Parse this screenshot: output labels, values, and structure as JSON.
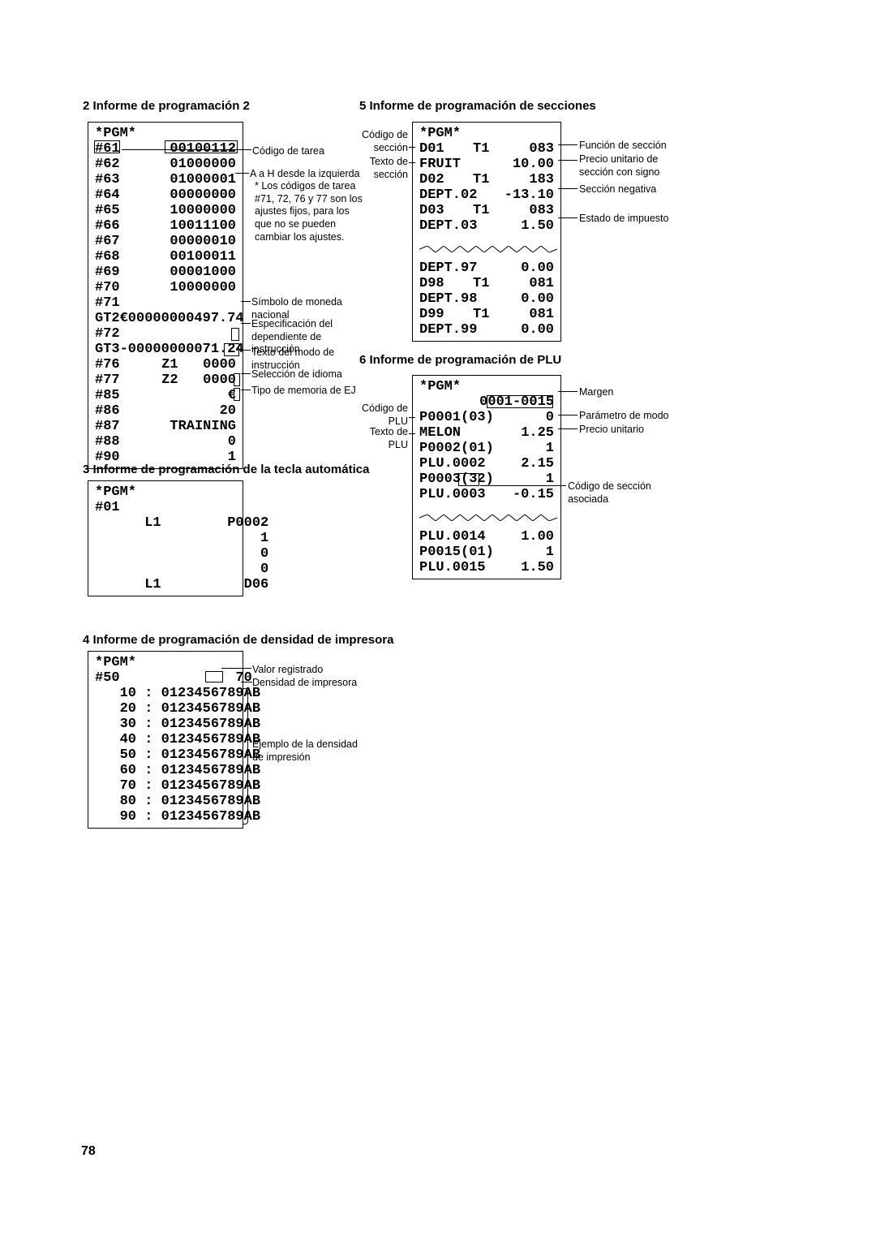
{
  "pageNumber": "78",
  "sections": {
    "s2": {
      "title": "2  Informe de programación 2",
      "header": "*PGM*",
      "rows1": [
        {
          "l": "#61",
          "r": "00100112"
        },
        {
          "l": "#62",
          "r": "01000000"
        },
        {
          "l": "#63",
          "r": "01000001"
        },
        {
          "l": "#64",
          "r": "00000000"
        },
        {
          "l": "#65",
          "r": "10000000"
        },
        {
          "l": "#66",
          "r": "10011100"
        },
        {
          "l": "#67",
          "r": "00000010"
        },
        {
          "l": "#68",
          "r": "00100011"
        },
        {
          "l": "#69",
          "r": "00001000"
        },
        {
          "l": "#70",
          "r": "10000000"
        },
        {
          "l": "#71",
          "r": ""
        },
        {
          "l": "GT2",
          "r": "€00000000497.74"
        },
        {
          "l": "#72",
          "r": ""
        },
        {
          "l": "GT3",
          "r": "-00000000071.24"
        },
        {
          "l": "#76",
          "r": "Z1   0000"
        },
        {
          "l": "#77",
          "r": "Z2   0000"
        },
        {
          "l": "#85",
          "r": "€"
        },
        {
          "l": "#86",
          "r": "20"
        },
        {
          "l": "#87",
          "r": "TRAINING"
        },
        {
          "l": "#88",
          "r": "0"
        },
        {
          "l": "#90",
          "r": "1"
        }
      ],
      "ann": {
        "codigoTarea": "Código de tarea",
        "aAh": "A a H desde la izquierda",
        "note": "* Los códigos de tarea #71, 72, 76 y 77 son los ajustes fijos, para los que no se pueden cambiar los ajustes.",
        "simbolo": "Símbolo de moneda nacional",
        "espec": "Especificación del dependiente de instrucción",
        "textoModo": "Texto del modo de instrucción",
        "seleccion": "Selección de idioma",
        "tipoEJ": "Tipo de memoria de EJ"
      }
    },
    "s3": {
      "title": "3  Informe de programación de la tecla automática",
      "lines": [
        "*PGM*",
        "#01",
        "      L1        P0002",
        "                    1",
        "                    0",
        "                    0",
        "      L1          D06"
      ]
    },
    "s4": {
      "title": "4  Informe de programación de densidad de impresora",
      "lines": [
        "*PGM*",
        "#50              70",
        "   10 : 0123456789AB",
        "   20 : 0123456789AB",
        "   30 : 0123456789AB",
        "   40 : 0123456789AB",
        "   50 : 0123456789AB",
        "   60 : 0123456789AB",
        "   70 : 0123456789AB",
        "   80 : 0123456789AB",
        "   90 : 0123456789AB"
      ],
      "ann": {
        "valor": "Valor registrado",
        "densidad": "Densidad de impresora",
        "ejemplo": "Ejemplo de la densidad de impresión"
      }
    },
    "s5": {
      "title": "5  Informe de programación de secciones",
      "header": "*PGM*",
      "rows1": [
        {
          "c1": "D01",
          "c2": "T1",
          "c3": "083"
        },
        {
          "c1": "FRUIT",
          "c2": "",
          "c3": "10.00"
        },
        {
          "c1": "D02",
          "c2": "T1",
          "c3": "183"
        },
        {
          "c1": "DEPT.02",
          "c2": "",
          "c3": "-13.10"
        },
        {
          "c1": "D03",
          "c2": "T1",
          "c3": "083"
        },
        {
          "c1": "DEPT.03",
          "c2": "",
          "c3": "1.50"
        }
      ],
      "rows2": [
        {
          "c1": "DEPT.97",
          "c2": "",
          "c3": "0.00"
        },
        {
          "c1": "D98",
          "c2": "T1",
          "c3": "081"
        },
        {
          "c1": "DEPT.98",
          "c2": "",
          "c3": "0.00"
        },
        {
          "c1": "D99",
          "c2": "T1",
          "c3": "081"
        },
        {
          "c1": "DEPT.99",
          "c2": "",
          "c3": "0.00"
        }
      ],
      "ann": {
        "codigoSeccion": "Código de sección",
        "textoSeccion": "Texto de sección",
        "funcionSeccion": "Función de sección",
        "precioUnit": "Precio unitario de sección con signo",
        "seccionNeg": "Sección negativa",
        "estadoImp": "Estado de impuesto"
      }
    },
    "s6": {
      "title": "6  Informe de programación de PLU",
      "header": "*PGM*",
      "rangeLabel": "0001-0015",
      "rows1": [
        {
          "c1": "P0001(03)",
          "c3": "0"
        },
        {
          "c1": "MELON",
          "c3": "1.25"
        },
        {
          "c1": "P0002(01)",
          "c3": "1"
        },
        {
          "c1": "PLU.0002",
          "c3": "2.15"
        },
        {
          "c1": "P0003(32)",
          "c3": "1"
        },
        {
          "c1": "PLU.0003",
          "c3": "-0.15"
        }
      ],
      "rows2": [
        {
          "c1": "PLU.0014",
          "c3": "1.00"
        },
        {
          "c1": "P0015(01)",
          "c3": "1"
        },
        {
          "c1": "PLU.0015",
          "c3": "1.50"
        }
      ],
      "ann": {
        "margen": "Margen",
        "codigoPLU": "Código de PLU",
        "textoPLU": "Texto de PLU",
        "paramModo": "Parámetro de modo",
        "precioUnit": "Precio unitario",
        "codigoSeccAsoc": "Código de sección asociada"
      }
    }
  }
}
